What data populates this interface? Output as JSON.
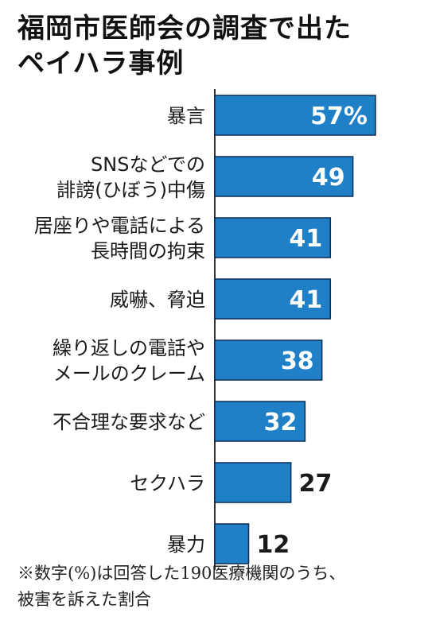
{
  "title": {
    "line1": "福岡市医師会の調査で出た",
    "line2": "ペイハラ事例"
  },
  "chart_data": {
    "type": "bar",
    "orientation": "horizontal",
    "categories": [
      [
        "暴言"
      ],
      [
        "SNSなどでの",
        "誹謗(ひぼう)中傷"
      ],
      [
        "居座りや電話による",
        "長時間の拘束"
      ],
      [
        "威嚇、脅迫"
      ],
      [
        "繰り返しの電話や",
        "メールのクレーム"
      ],
      [
        "不合理な要求など"
      ],
      [
        "セクハラ"
      ],
      [
        "暴力"
      ]
    ],
    "values": [
      57,
      49,
      41,
      41,
      38,
      32,
      27,
      12
    ],
    "value_labels": [
      "57%",
      "49",
      "41",
      "41",
      "38",
      "32",
      "27",
      "12"
    ],
    "value_unit": "%",
    "xlim": [
      0,
      57
    ],
    "grid": false,
    "bar_color": "#1f80c8",
    "bar_border": "#0d2f55"
  },
  "note": {
    "line1": "※数字(%)は回答した190医療機関のうち、",
    "line2": "被害を訴えた割合"
  }
}
